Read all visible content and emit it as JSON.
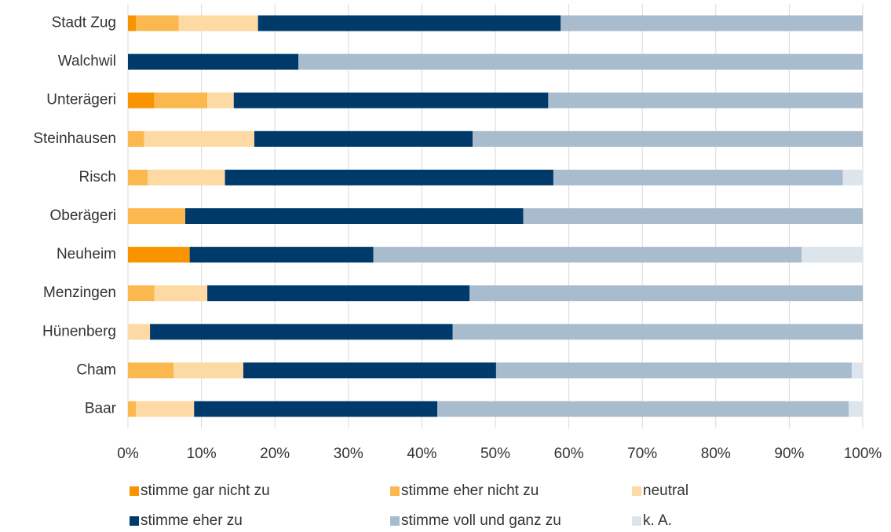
{
  "chart_data": {
    "type": "stacked_barh",
    "categories": [
      "Stadt Zug",
      "Walchwil",
      "Unterägeri",
      "Steinhausen",
      "Risch",
      "Oberägeri",
      "Neuheim",
      "Menzingen",
      "Hünenberg",
      "Cham",
      "Baar"
    ],
    "series": [
      {
        "name": "stimme gar nicht zu",
        "color": "#f79400",
        "values": [
          1.1,
          0,
          3.6,
          0,
          0,
          0,
          8.4,
          0,
          0,
          0,
          0
        ]
      },
      {
        "name": "stimme eher nicht zu",
        "color": "#fbb84f",
        "values": [
          5.8,
          0,
          7.2,
          2.2,
          2.7,
          7.8,
          0,
          3.6,
          0,
          6.2,
          1.1
        ]
      },
      {
        "name": "neutral",
        "color": "#fdd9a3",
        "values": [
          10.8,
          0,
          3.6,
          15.0,
          10.5,
          0,
          0,
          7.2,
          3.0,
          9.5,
          7.9
        ]
      },
      {
        "name": "stimme eher zu",
        "color": "#003a6b",
        "values": [
          41.2,
          23.2,
          42.8,
          29.7,
          44.7,
          46.0,
          25.0,
          35.7,
          41.2,
          34.4,
          33.1
        ]
      },
      {
        "name": "stimme voll und ganz zu",
        "color": "#a9bccd",
        "values": [
          41.1,
          76.8,
          42.8,
          53.1,
          39.4,
          46.2,
          58.3,
          53.5,
          55.8,
          48.4,
          56.0
        ]
      },
      {
        "name": "k. A.",
        "color": "#dde5ec",
        "values": [
          0,
          0,
          0,
          0,
          2.7,
          0,
          8.3,
          0,
          0,
          1.5,
          1.9
        ]
      }
    ],
    "xlim": [
      0,
      100
    ],
    "xticks": [
      {
        "value": 0,
        "label": "0%"
      },
      {
        "value": 10,
        "label": "10%"
      },
      {
        "value": 20,
        "label": "20%"
      },
      {
        "value": 30,
        "label": "30%"
      },
      {
        "value": 40,
        "label": "40%"
      },
      {
        "value": 50,
        "label": "50%"
      },
      {
        "value": 60,
        "label": "60%"
      },
      {
        "value": 70,
        "label": "70%"
      },
      {
        "value": 80,
        "label": "80%"
      },
      {
        "value": 90,
        "label": "90%"
      },
      {
        "value": 100,
        "label": "100%"
      }
    ],
    "grid": true
  }
}
